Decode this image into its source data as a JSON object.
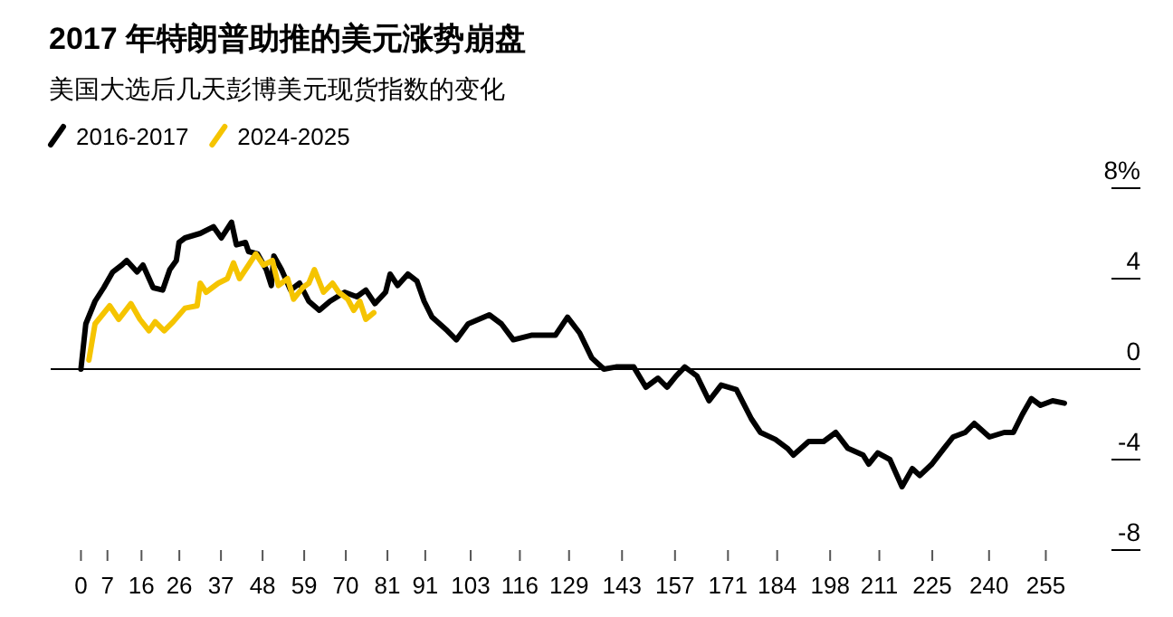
{
  "chart_data": {
    "type": "line",
    "title": "2017 年特朗普助推的美元涨势崩盘",
    "subtitle": "美国大选后几天彭博美元现货指数的变化",
    "legend": "top left",
    "line_style": "solid",
    "xlim": [
      -8,
      280
    ],
    "xticks": [
      0,
      7,
      16,
      26,
      37,
      48,
      59,
      70,
      81,
      91,
      103,
      116,
      129,
      143,
      157,
      171,
      184,
      198,
      211,
      225,
      240,
      255
    ],
    "ylim": [
      -8,
      8
    ],
    "yticks": [
      {
        "value": 8,
        "label": "8%"
      },
      4,
      0,
      -4,
      -8
    ],
    "ref_lines": [
      {
        "axis": "y",
        "value": 0,
        "color": "#000000"
      }
    ],
    "series": [
      {
        "name": "2016-2017",
        "color": "#000000",
        "x": [
          0,
          1.3,
          3.7,
          6,
          8.4,
          10.8,
          12.1,
          14.8,
          16.4,
          19.1,
          21.6,
          23.5,
          25.2,
          25.9,
          27.5,
          31.5,
          35,
          37.1,
          39.8,
          41.1,
          43.5,
          44.3,
          46.7,
          49,
          50.3,
          51,
          53,
          55.4,
          57.8,
          60.2,
          63,
          65.8,
          69.7,
          72.9,
          75.3,
          77.7,
          80.5,
          81.7,
          83.7,
          86.4,
          88.8,
          90.7,
          92.8,
          96.8,
          99.2,
          102.3,
          107.9,
          111.1,
          114.3,
          119,
          125.4,
          128.6,
          131.8,
          135,
          138.2,
          141.4,
          146.1,
          149.3,
          152.5,
          154.9,
          157.3,
          159.6,
          162.8,
          166,
          169.2,
          173.2,
          177.2,
          179.6,
          183.5,
          186.7,
          188.3,
          192.3,
          196.3,
          199.5,
          202.7,
          206.7,
          208.2,
          210.6,
          213.8,
          217,
          219.7,
          221.7,
          224.9,
          228.1,
          230.5,
          233.7,
          236.1,
          240.1,
          244,
          246.4,
          248.8,
          251.2,
          253.6,
          256.8,
          259.9
        ],
        "values": [
          0,
          2.0,
          3.0,
          3.6,
          4.3,
          4.6,
          4.8,
          4.3,
          4.6,
          3.6,
          3.5,
          4.4,
          4.8,
          5.6,
          5.8,
          6.0,
          6.3,
          5.8,
          6.5,
          5.5,
          5.6,
          5.2,
          5.1,
          4.4,
          3.7,
          5.0,
          4.4,
          3.5,
          3.8,
          3.0,
          2.6,
          3.0,
          3.4,
          3.2,
          3.5,
          2.9,
          3.4,
          4.2,
          3.7,
          4.2,
          3.9,
          3.0,
          2.3,
          1.7,
          1.3,
          2.0,
          2.4,
          2.0,
          1.3,
          1.5,
          1.5,
          2.3,
          1.6,
          0.5,
          0,
          0.1,
          0.1,
          -0.8,
          -0.4,
          -0.8,
          -0.3,
          0.1,
          -0.3,
          -1.4,
          -0.7,
          -0.9,
          -2.2,
          -2.8,
          -3.1,
          -3.5,
          -3.8,
          -3.2,
          -3.2,
          -2.8,
          -3.5,
          -3.8,
          -4.2,
          -3.7,
          -4.0,
          -5.2,
          -4.4,
          -4.7,
          -4.2,
          -3.5,
          -3.0,
          -2.8,
          -2.4,
          -3.0,
          -2.8,
          -2.8,
          -2.0,
          -1.3,
          -1.6,
          -1.4,
          -1.5
        ]
      },
      {
        "name": "2024-2025",
        "color": "#f5c400",
        "x": [
          2.1,
          3.7,
          7.6,
          10,
          13.2,
          15.6,
          18,
          19.6,
          22,
          24.4,
          27.5,
          30.7,
          31.5,
          33.1,
          36.3,
          38.7,
          40.3,
          41.9,
          44.3,
          46.2,
          48.2,
          50.6,
          52.2,
          54.6,
          56.2,
          58.6,
          60.2,
          61.7,
          64.1,
          66.5,
          68.1,
          70.5,
          72.1,
          73.7,
          75.3,
          77.4
        ],
        "values": [
          0.4,
          2.0,
          2.8,
          2.2,
          2.9,
          2.2,
          1.7,
          2.1,
          1.7,
          2.1,
          2.7,
          2.8,
          3.8,
          3.4,
          3.8,
          4.0,
          4.7,
          4.0,
          4.6,
          5.1,
          4.6,
          4.8,
          3.7,
          4.0,
          3.1,
          3.6,
          3.8,
          4.4,
          3.4,
          3.8,
          3.4,
          3.1,
          2.6,
          3.0,
          2.2,
          2.5
        ]
      }
    ]
  }
}
